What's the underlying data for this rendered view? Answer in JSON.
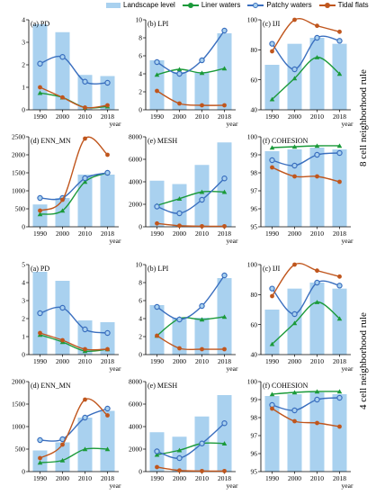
{
  "legend": {
    "bars": "Landscape level",
    "s1": "Liner waters",
    "s2": "Patchy waters",
    "s3": "Tidal flats"
  },
  "colors": {
    "bars": "#a9d1ef",
    "s1": "#1b9a3a",
    "s2": "#3a6fbf",
    "s3": "#c0561d"
  },
  "rule_labels": {
    "top": "8 cell neighborhood rule",
    "bottom": "4 cell neighborhood rule"
  },
  "chart_data": [
    {
      "id": "top-pd",
      "type": "bar+line",
      "title": "(a) PD",
      "xlabel": "year",
      "categories": [
        "1990",
        "2000",
        "2010",
        "2018"
      ],
      "ylim": [
        0,
        4
      ],
      "yticks": [
        0,
        1,
        2,
        3,
        4
      ],
      "bars": [
        3.8,
        3.45,
        1.55,
        1.5
      ],
      "series": [
        {
          "name": "Liner waters",
          "values": [
            0.75,
            0.55,
            0.1,
            0.15
          ]
        },
        {
          "name": "Patchy waters",
          "values": [
            2.05,
            2.35,
            1.25,
            1.2
          ]
        },
        {
          "name": "Tidal flats",
          "values": [
            1.0,
            0.55,
            0.1,
            0.2
          ]
        }
      ]
    },
    {
      "id": "top-lpi",
      "type": "bar+line",
      "title": "(b) LPI",
      "xlabel": "year",
      "categories": [
        "1990",
        "2000",
        "2010",
        "2018"
      ],
      "ylim": [
        0,
        10
      ],
      "yticks": [
        0,
        2,
        4,
        6,
        8,
        10
      ],
      "bars": [
        5.5,
        4.2,
        4.2,
        8.5
      ],
      "series": [
        {
          "name": "Liner waters",
          "values": [
            3.9,
            4.5,
            4.1,
            4.6
          ]
        },
        {
          "name": "Patchy waters",
          "values": [
            5.3,
            4.0,
            5.5,
            8.8
          ]
        },
        {
          "name": "Tidal flats",
          "values": [
            2.1,
            0.7,
            0.5,
            0.5
          ]
        }
      ]
    },
    {
      "id": "top-iji",
      "type": "bar+line",
      "title": "(c) IJI",
      "xlabel": "year",
      "categories": [
        "1990",
        "2000",
        "2010",
        "2018"
      ],
      "ylim": [
        40,
        100
      ],
      "yticks": [
        40,
        60,
        80,
        100
      ],
      "bars": [
        70,
        84,
        88,
        84
      ],
      "series": [
        {
          "name": "Liner waters",
          "values": [
            47,
            61,
            75,
            64
          ]
        },
        {
          "name": "Patchy waters",
          "values": [
            84,
            67,
            88,
            86
          ]
        },
        {
          "name": "Tidal flats",
          "values": [
            79,
            100,
            96,
            92
          ]
        }
      ]
    },
    {
      "id": "top-enn",
      "type": "bar+line",
      "title": "(d) ENN_MN",
      "xlabel": "year",
      "categories": [
        "1990",
        "2000",
        "2010",
        "2018"
      ],
      "ylim": [
        0,
        2500
      ],
      "yticks": [
        0,
        500,
        1000,
        1500,
        2000,
        2500
      ],
      "bars": [
        620,
        800,
        1450,
        1450
      ],
      "series": [
        {
          "name": "Liner waters",
          "values": [
            350,
            450,
            1250,
            1500
          ]
        },
        {
          "name": "Patchy waters",
          "values": [
            800,
            800,
            1350,
            1500
          ]
        },
        {
          "name": "Tidal flats",
          "values": [
            450,
            750,
            2450,
            2000
          ]
        }
      ]
    },
    {
      "id": "top-mesh",
      "type": "bar+line",
      "title": "(e) MESH",
      "xlabel": "year",
      "categories": [
        "1990",
        "2000",
        "2010",
        "2018"
      ],
      "ylim": [
        0,
        8000
      ],
      "yticks": [
        0,
        2000,
        4000,
        6000,
        8000
      ],
      "bars": [
        4100,
        3800,
        5500,
        7500
      ],
      "series": [
        {
          "name": "Liner waters",
          "values": [
            1900,
            2500,
            3100,
            3100
          ]
        },
        {
          "name": "Patchy waters",
          "values": [
            1800,
            1200,
            2400,
            4300
          ]
        },
        {
          "name": "Tidal flats",
          "values": [
            300,
            100,
            50,
            50
          ]
        }
      ]
    },
    {
      "id": "top-coh",
      "type": "bar+line",
      "title": "(f) COHESION",
      "xlabel": "year",
      "categories": [
        "1990",
        "2000",
        "2010",
        "2018"
      ],
      "ylim": [
        95,
        100
      ],
      "yticks": [
        95,
        96,
        97,
        98,
        99,
        100
      ],
      "bars": [
        99.2,
        99.3,
        99.4,
        99.3
      ],
      "series": [
        {
          "name": "Liner waters",
          "values": [
            99.4,
            99.45,
            99.5,
            99.5
          ]
        },
        {
          "name": "Patchy waters",
          "values": [
            98.7,
            98.4,
            99.0,
            99.1
          ]
        },
        {
          "name": "Tidal flats",
          "values": [
            98.3,
            97.8,
            97.8,
            97.5
          ]
        }
      ]
    },
    {
      "id": "bot-pd",
      "type": "bar+line",
      "title": "(a) PD",
      "xlabel": "year",
      "categories": [
        "1990",
        "2000",
        "2010",
        "2018"
      ],
      "ylim": [
        0,
        5
      ],
      "yticks": [
        0,
        1,
        2,
        3,
        4,
        5
      ],
      "bars": [
        4.6,
        4.1,
        1.9,
        1.8
      ],
      "series": [
        {
          "name": "Liner waters",
          "values": [
            1.1,
            0.7,
            0.2,
            0.3
          ]
        },
        {
          "name": "Patchy waters",
          "values": [
            2.3,
            2.6,
            1.4,
            1.2
          ]
        },
        {
          "name": "Tidal flats",
          "values": [
            1.2,
            0.8,
            0.3,
            0.3
          ]
        }
      ]
    },
    {
      "id": "bot-lpi",
      "type": "bar+line",
      "title": "(b) LPI",
      "xlabel": "year",
      "categories": [
        "1990",
        "2000",
        "2010",
        "2018"
      ],
      "ylim": [
        0,
        10
      ],
      "yticks": [
        0,
        2,
        4,
        6,
        8,
        10
      ],
      "bars": [
        5.5,
        4.1,
        4.1,
        8.5
      ],
      "series": [
        {
          "name": "Liner waters",
          "values": [
            2.1,
            4.0,
            3.9,
            4.2
          ]
        },
        {
          "name": "Patchy waters",
          "values": [
            5.3,
            3.9,
            5.4,
            8.8
          ]
        },
        {
          "name": "Tidal flats",
          "values": [
            2.1,
            0.7,
            0.6,
            0.6
          ]
        }
      ]
    },
    {
      "id": "bot-iji",
      "type": "bar+line",
      "title": "(c) IJI",
      "xlabel": "year",
      "categories": [
        "1990",
        "2000",
        "2010",
        "2018"
      ],
      "ylim": [
        40,
        100
      ],
      "yticks": [
        40,
        60,
        80,
        100
      ],
      "bars": [
        70,
        84,
        88,
        84
      ],
      "series": [
        {
          "name": "Liner waters",
          "values": [
            47,
            61,
            75,
            64
          ]
        },
        {
          "name": "Patchy waters",
          "values": [
            84,
            67,
            88,
            86
          ]
        },
        {
          "name": "Tidal flats",
          "values": [
            79,
            100,
            96,
            92
          ]
        }
      ]
    },
    {
      "id": "bot-enn",
      "type": "bar+line",
      "title": "(d) ENN_MN",
      "xlabel": "year",
      "categories": [
        "1990",
        "2000",
        "2010",
        "2018"
      ],
      "ylim": [
        0,
        2000
      ],
      "yticks": [
        0,
        500,
        1000,
        1500,
        2000
      ],
      "bars": [
        470,
        650,
        1200,
        1350
      ],
      "series": [
        {
          "name": "Liner waters",
          "values": [
            200,
            250,
            500,
            500
          ]
        },
        {
          "name": "Patchy waters",
          "values": [
            700,
            720,
            1200,
            1400
          ]
        },
        {
          "name": "Tidal flats",
          "values": [
            300,
            600,
            1600,
            1250
          ]
        }
      ]
    },
    {
      "id": "bot-mesh",
      "type": "bar+line",
      "title": "(e) MESH",
      "xlabel": "year",
      "categories": [
        "1990",
        "2000",
        "2010",
        "2018"
      ],
      "ylim": [
        0,
        8000
      ],
      "yticks": [
        0,
        2000,
        4000,
        6000,
        8000
      ],
      "bars": [
        3500,
        3100,
        4900,
        6800
      ],
      "series": [
        {
          "name": "Liner waters",
          "values": [
            1500,
            1900,
            2500,
            2500
          ]
        },
        {
          "name": "Patchy waters",
          "values": [
            1800,
            1200,
            2500,
            4300
          ]
        },
        {
          "name": "Tidal flats",
          "values": [
            400,
            100,
            50,
            50
          ]
        }
      ]
    },
    {
      "id": "bot-coh",
      "type": "bar+line",
      "title": "(f) COHESION",
      "xlabel": "year",
      "categories": [
        "1990",
        "2000",
        "2010",
        "2018"
      ],
      "ylim": [
        95,
        100
      ],
      "yticks": [
        95,
        96,
        97,
        98,
        99,
        100
      ],
      "bars": [
        99.2,
        99.3,
        99.4,
        99.3
      ],
      "series": [
        {
          "name": "Liner waters",
          "values": [
            99.3,
            99.4,
            99.45,
            99.45
          ]
        },
        {
          "name": "Patchy waters",
          "values": [
            98.7,
            98.4,
            99.0,
            99.1
          ]
        },
        {
          "name": "Tidal flats",
          "values": [
            98.5,
            97.8,
            97.7,
            97.5
          ]
        }
      ]
    }
  ]
}
